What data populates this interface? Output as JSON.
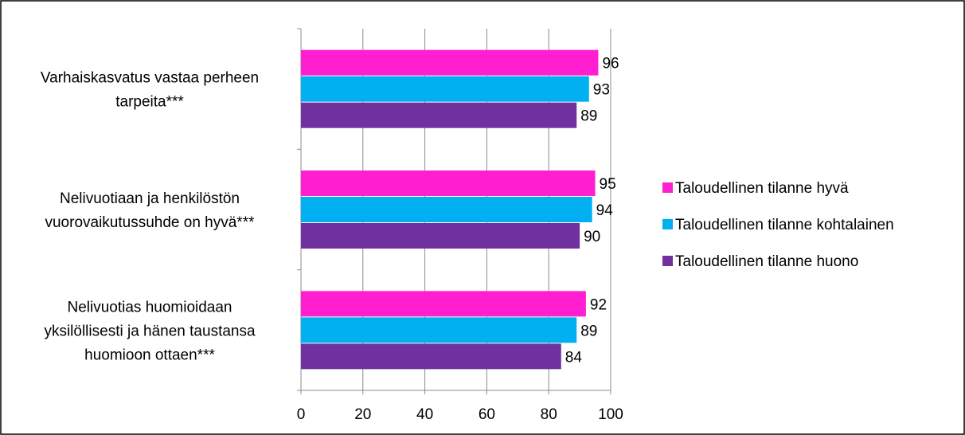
{
  "chart_data": {
    "type": "bar",
    "orientation": "horizontal",
    "categories": [
      [
        "Varhaiskasvatus vastaa perheen",
        "tarpeita***"
      ],
      [
        "Nelivuotiaan ja henkilöstön",
        "vuorovaikutussuhde on hyvä***"
      ],
      [
        "Nelivuotias huomioidaan",
        "yksilöllisesti ja hänen taustansa",
        "huomioon ottaen***"
      ]
    ],
    "series": [
      {
        "name": "Taloudellinen tilanne hyvä",
        "color": "#FF1FD0",
        "values": [
          96,
          95,
          92
        ]
      },
      {
        "name": "Taloudellinen tilanne kohtalainen",
        "color": "#00B0F0",
        "values": [
          93,
          94,
          89
        ]
      },
      {
        "name": "Taloudellinen tilanne huono",
        "color": "#7030A0",
        "values": [
          89,
          90,
          84
        ]
      }
    ],
    "xlim": [
      0,
      100
    ],
    "xticks": [
      "0",
      "20",
      "40",
      "60",
      "80",
      "100"
    ],
    "grid": true,
    "legend_position": "right",
    "data_labels": true
  }
}
